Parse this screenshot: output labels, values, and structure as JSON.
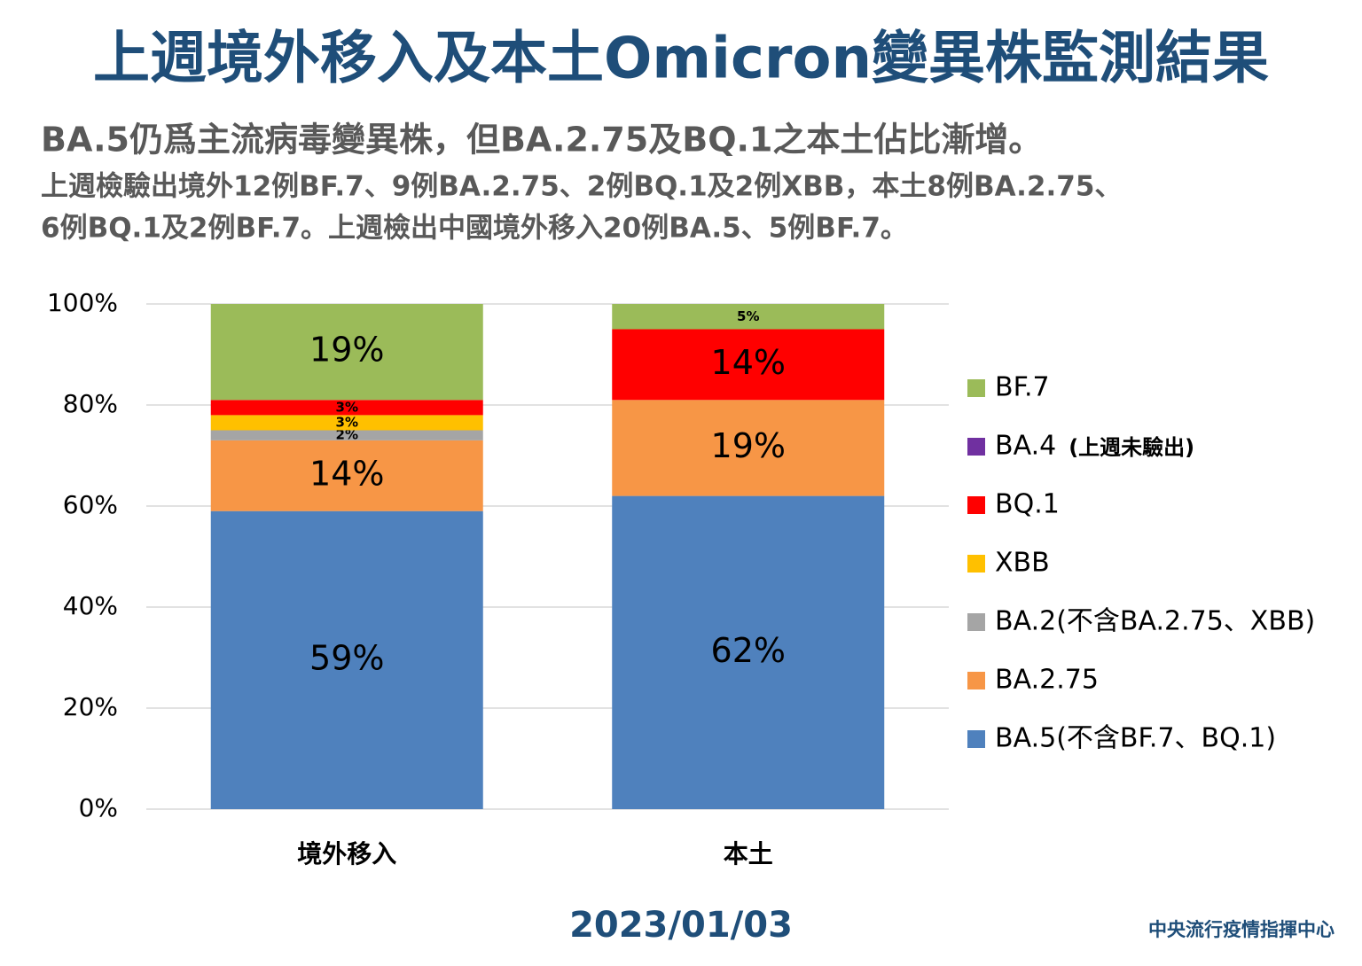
{
  "chart_data": {
    "type": "stacked_bar",
    "title": "上週境外移入及本土Omicron變異株監測結果",
    "subtitle": "BA.5仍爲主流病毒變異株，但BA.2.75及BQ.1之本土佔比漸增。",
    "description": [
      "上週檢驗出境外12例BF.7、9例BA.2.75、2例BQ.1及2例XBB，本土8例BA.2.75、",
      "6例BQ.1及2例BF.7。上週檢出中國境外移入20例BA.5、5例BF.7。"
    ],
    "categories": [
      "境外移入",
      "本土"
    ],
    "series": [
      {
        "name": "BA.5(不含BF.7、BQ.1)",
        "color": "#4f81bd",
        "values": [
          59,
          62
        ],
        "value_labels": [
          "59%",
          "62%"
        ]
      },
      {
        "name": "BA.2.75",
        "color": "#f79646",
        "values": [
          14,
          19
        ],
        "value_labels": [
          "14%",
          "19%"
        ]
      },
      {
        "name": "BA.2(不含BA.2.75、XBB)",
        "color": "#a5a5a5",
        "values": [
          2,
          0
        ],
        "value_labels": [
          "2%",
          null
        ]
      },
      {
        "name": "XBB",
        "color": "#ffc000",
        "values": [
          3,
          0
        ],
        "value_labels": [
          "3%",
          null
        ]
      },
      {
        "name": "BQ.1",
        "color": "#ff0000",
        "values": [
          3,
          14
        ],
        "value_labels": [
          "3%",
          "14%"
        ]
      },
      {
        "name": "BA.4",
        "note": "(上週未驗出)",
        "color": "#7030a0",
        "values": [
          0,
          0
        ],
        "value_labels": [
          null,
          null
        ]
      },
      {
        "name": "BF.7",
        "color": "#9bbb59",
        "values": [
          19,
          5
        ],
        "value_labels": [
          "19%",
          "5%"
        ]
      }
    ],
    "ylim": [
      0,
      100
    ],
    "yticks": [
      {
        "value": 0,
        "label": "0%"
      },
      {
        "value": 20,
        "label": "20%"
      },
      {
        "value": 40,
        "label": "40%"
      },
      {
        "value": 60,
        "label": "60%"
      },
      {
        "value": 80,
        "label": "80%"
      },
      {
        "value": 100,
        "label": "100%"
      }
    ],
    "grid": true,
    "legend": "right",
    "date": "2023/01/03",
    "source": "中央流行疫情指揮中心"
  }
}
